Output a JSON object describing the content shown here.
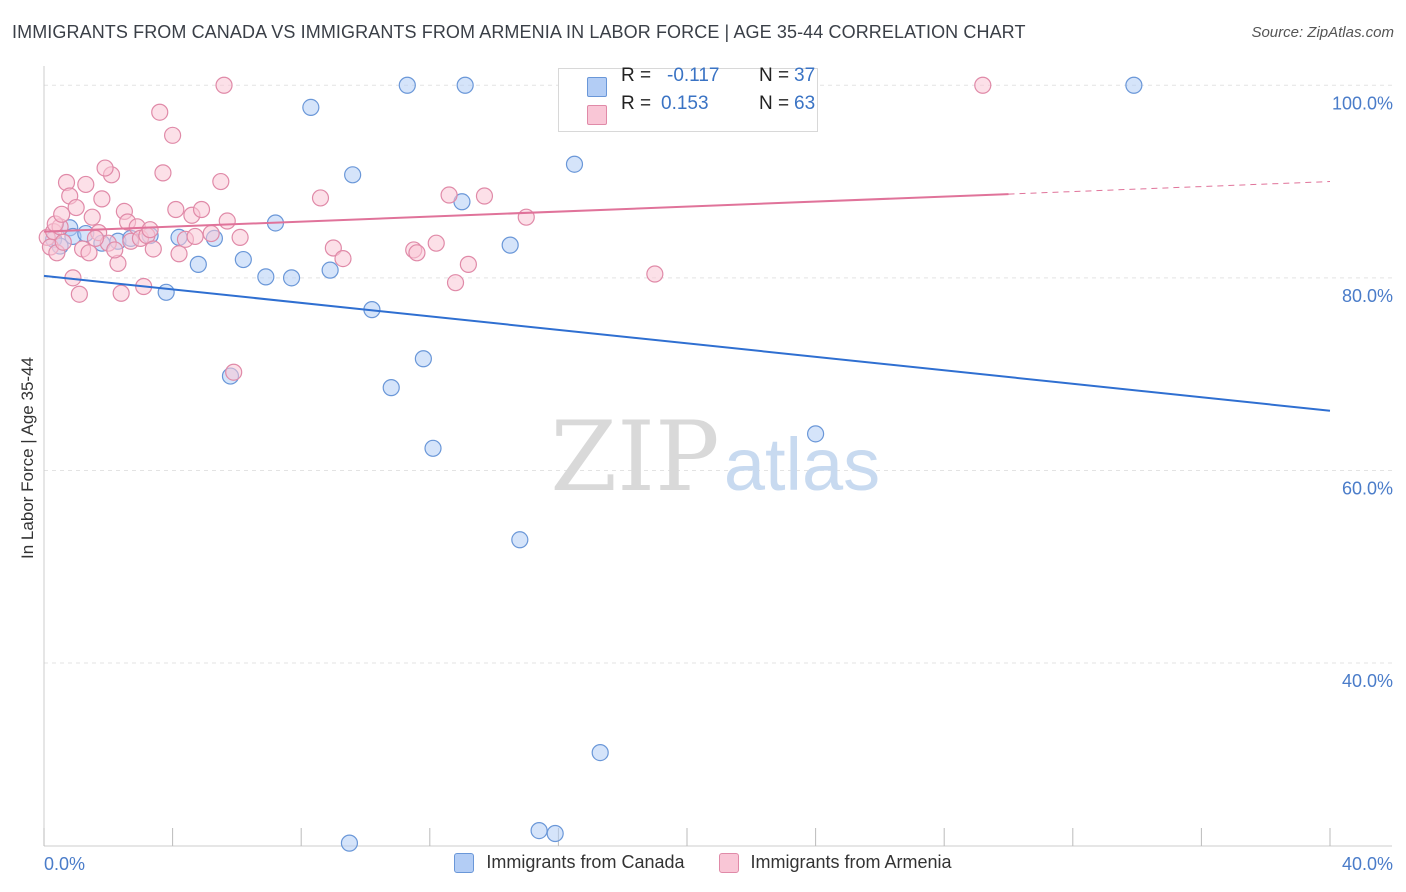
{
  "title": "IMMIGRANTS FROM CANADA VS IMMIGRANTS FROM ARMENIA IN LABOR FORCE | AGE 35-44 CORRELATION CHART",
  "source": "Source: ZipAtlas.com",
  "watermark": {
    "zip": "ZIP",
    "atlas": "atlas"
  },
  "stats": {
    "canada": {
      "r_label": "R =",
      "r_value": "-0.117",
      "n_label": "N =",
      "n_value": "37"
    },
    "armenia": {
      "r_label": "R =",
      "r_value": "0.153",
      "n_label": "N =",
      "n_value": "63"
    }
  },
  "legend": {
    "canada": "Immigrants from Canada",
    "armenia": "Immigrants from Armenia"
  },
  "colors": {
    "canada_fill": "#b3cdf5",
    "canada_stroke": "#6a97d8",
    "canada_line": "#2f6fd1",
    "armenia_fill": "#f9c6d6",
    "armenia_stroke": "#e08aa8",
    "armenia_line": "#e0739a",
    "grid": "#e3e3e3",
    "tick_label": "#4a7cc9"
  },
  "chart_data": {
    "type": "scatter",
    "title": "IMMIGRANTS FROM CANADA VS IMMIGRANTS FROM ARMENIA IN LABOR FORCE | AGE 35-44 CORRELATION CHART",
    "xlabel": "",
    "ylabel": "In Labor Force | Age 35-44",
    "xlim": [
      0,
      40
    ],
    "ylim": [
      21,
      102
    ],
    "x_tick_labels": [
      "0.0%",
      "40.0%"
    ],
    "y_ticks": [
      40,
      60,
      80,
      100
    ],
    "y_tick_labels": [
      "40.0%",
      "60.0%",
      "80.0%",
      "100.0%"
    ],
    "grid": true,
    "series": [
      {
        "name": "Immigrants from Canada",
        "r": -0.117,
        "n": 37,
        "trend": {
          "x0": 0,
          "y0": 80.2,
          "x1": 40,
          "y1": 66.2,
          "dashed_from": null
        },
        "points": [
          [
            0.3,
            84.0
          ],
          [
            0.5,
            83.3
          ],
          [
            0.8,
            85.2
          ],
          [
            0.9,
            84.3
          ],
          [
            1.3,
            84.6
          ],
          [
            1.8,
            83.6
          ],
          [
            2.3,
            83.8
          ],
          [
            2.7,
            84.1
          ],
          [
            3.3,
            84.4
          ],
          [
            3.8,
            78.5
          ],
          [
            4.2,
            84.2
          ],
          [
            4.8,
            81.4
          ],
          [
            5.3,
            84.1
          ],
          [
            5.8,
            69.8
          ],
          [
            6.2,
            81.9
          ],
          [
            6.9,
            80.1
          ],
          [
            7.2,
            85.7
          ],
          [
            7.7,
            80.0
          ],
          [
            8.3,
            97.7
          ],
          [
            8.9,
            80.8
          ],
          [
            9.5,
            21.3
          ],
          [
            9.6,
            90.7
          ],
          [
            10.2,
            76.7
          ],
          [
            10.8,
            68.6
          ],
          [
            11.3,
            100.0
          ],
          [
            11.8,
            71.6
          ],
          [
            12.1,
            62.3
          ],
          [
            13.0,
            87.9
          ],
          [
            13.1,
            100.0
          ],
          [
            14.5,
            83.4
          ],
          [
            14.8,
            52.8
          ],
          [
            15.4,
            22.6
          ],
          [
            15.9,
            22.3
          ],
          [
            16.5,
            91.8
          ],
          [
            17.3,
            30.7
          ],
          [
            24.0,
            63.8
          ],
          [
            33.9,
            100.0
          ]
        ]
      },
      {
        "name": "Immigrants from Armenia",
        "r": 0.153,
        "n": 63,
        "trend": {
          "x0": 0,
          "y0": 84.8,
          "x1": 40,
          "y1": 90.0,
          "dashed_from": 30.0
        },
        "points": [
          [
            0.1,
            84.2
          ],
          [
            0.2,
            83.2
          ],
          [
            0.3,
            84.8
          ],
          [
            0.4,
            82.6
          ],
          [
            0.5,
            85.3
          ],
          [
            0.6,
            83.7
          ],
          [
            0.7,
            89.9
          ],
          [
            0.8,
            88.5
          ],
          [
            0.9,
            80.0
          ],
          [
            1.0,
            87.3
          ],
          [
            1.1,
            78.3
          ],
          [
            1.2,
            83.0
          ],
          [
            1.3,
            89.7
          ],
          [
            1.4,
            82.6
          ],
          [
            1.5,
            86.3
          ],
          [
            1.7,
            84.7
          ],
          [
            1.8,
            88.2
          ],
          [
            2.0,
            83.6
          ],
          [
            2.1,
            90.7
          ],
          [
            2.3,
            81.5
          ],
          [
            2.4,
            78.4
          ],
          [
            2.5,
            86.9
          ],
          [
            2.6,
            85.8
          ],
          [
            2.7,
            83.8
          ],
          [
            2.9,
            85.3
          ],
          [
            3.0,
            84.1
          ],
          [
            3.1,
            79.1
          ],
          [
            3.2,
            84.4
          ],
          [
            3.4,
            83.0
          ],
          [
            3.6,
            97.2
          ],
          [
            3.7,
            90.9
          ],
          [
            4.0,
            94.8
          ],
          [
            4.1,
            87.1
          ],
          [
            4.2,
            82.5
          ],
          [
            4.4,
            84.0
          ],
          [
            4.6,
            86.5
          ],
          [
            4.9,
            87.1
          ],
          [
            5.2,
            84.6
          ],
          [
            5.5,
            90.0
          ],
          [
            5.7,
            85.9
          ],
          [
            5.9,
            70.2
          ],
          [
            6.1,
            84.2
          ],
          [
            5.6,
            100.0
          ],
          [
            8.6,
            88.3
          ],
          [
            9.0,
            83.1
          ],
          [
            9.3,
            82.0
          ],
          [
            11.5,
            82.9
          ],
          [
            11.6,
            82.6
          ],
          [
            12.2,
            83.6
          ],
          [
            12.8,
            79.5
          ],
          [
            13.2,
            81.4
          ],
          [
            13.7,
            88.5
          ],
          [
            15.0,
            86.3
          ],
          [
            19.0,
            80.4
          ],
          [
            29.2,
            100.0
          ],
          [
            1.6,
            84.1
          ],
          [
            2.2,
            82.9
          ],
          [
            3.3,
            85.0
          ],
          [
            0.35,
            85.6
          ],
          [
            0.55,
            86.6
          ],
          [
            1.9,
            91.4
          ],
          [
            4.7,
            84.3
          ],
          [
            12.6,
            88.6
          ]
        ]
      }
    ]
  }
}
